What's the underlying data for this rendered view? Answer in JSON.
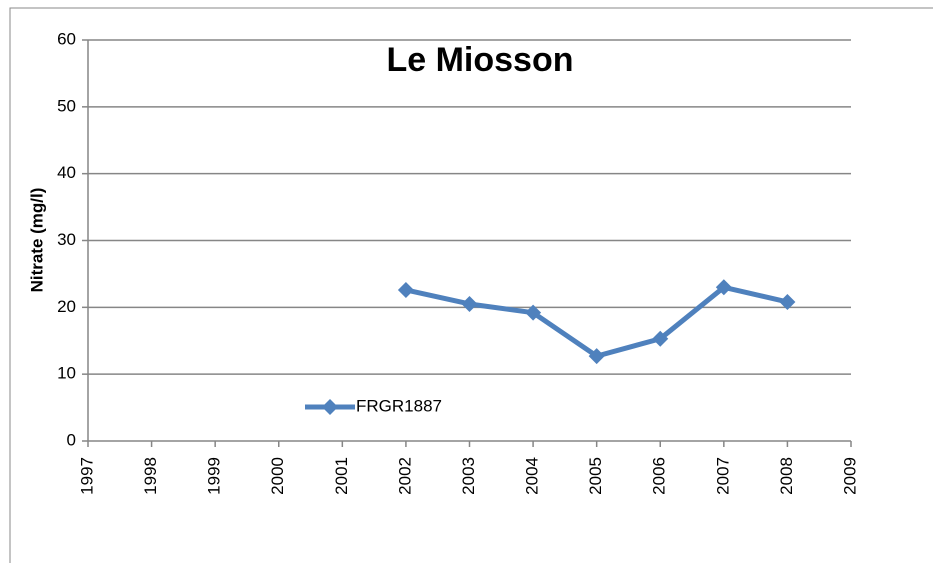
{
  "chart_data": {
    "type": "line",
    "title": "Le Miosson",
    "ylabel": "Nitrate (mg/l)",
    "x": [
      2002,
      2003,
      2004,
      2005,
      2006,
      2007,
      2008
    ],
    "series": [
      {
        "name": "FRGR1887",
        "color": "#4f81bd",
        "values": [
          22.6,
          20.5,
          19.2,
          12.7,
          15.3,
          23.0,
          20.8
        ]
      }
    ],
    "xlim": [
      1997,
      2009
    ],
    "xticks": [
      1997,
      1998,
      1999,
      2000,
      2001,
      2002,
      2003,
      2004,
      2005,
      2006,
      2007,
      2008,
      2009
    ],
    "ylim": [
      0,
      60
    ],
    "yticks": [
      0,
      10,
      20,
      30,
      40,
      50,
      60
    ],
    "grid": true,
    "legend": "lower-left"
  }
}
